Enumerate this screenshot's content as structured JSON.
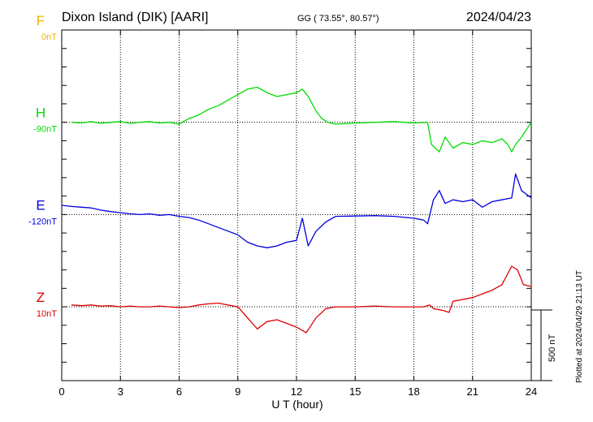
{
  "header": {
    "station": "Dixon Island (DIK)  [AARI]",
    "coords": "GG ( 73.55°,  80.57°)",
    "date": "2024/04/23"
  },
  "footer": {
    "plotted": "Plotted at 2024/04/29 21:13 UT",
    "scale_label": "500 nT"
  },
  "chart_data": {
    "type": "line",
    "title": "Dixon Island (DIK)  [AARI]",
    "xlabel": "U T (hour)",
    "ylabel": "",
    "xlim": [
      0,
      24
    ],
    "x_ticks": [
      0,
      3,
      6,
      9,
      12,
      15,
      18,
      21,
      24
    ],
    "x_tick_labels": [
      "0",
      "3",
      "6",
      "9",
      "12",
      "15",
      "18",
      "21",
      "24"
    ],
    "y_unit": "nT (offset from component baseline)",
    "ylim": [
      -450,
      500
    ],
    "grid": true,
    "scale_bar_nT": 500,
    "series": [
      {
        "name": "F",
        "baseline_label": "0nT",
        "color": "#f0b400",
        "baseline_offset": 500,
        "points": []
      },
      {
        "name": "H",
        "baseline_label": "-90nT",
        "color": "#00dd00",
        "baseline_offset": 250,
        "points": [
          [
            0.5,
            0
          ],
          [
            1,
            -2
          ],
          [
            1.5,
            2
          ],
          [
            2,
            -3
          ],
          [
            2.5,
            0
          ],
          [
            3,
            2
          ],
          [
            3.5,
            -3
          ],
          [
            4,
            0
          ],
          [
            4.5,
            2
          ],
          [
            5,
            -2
          ],
          [
            5.5,
            0
          ],
          [
            6,
            -5
          ],
          [
            6.5,
            10
          ],
          [
            7,
            20
          ],
          [
            7.5,
            35
          ],
          [
            8,
            45
          ],
          [
            8.5,
            60
          ],
          [
            9,
            75
          ],
          [
            9.5,
            90
          ],
          [
            10,
            95
          ],
          [
            10.5,
            80
          ],
          [
            11,
            70
          ],
          [
            11.5,
            75
          ],
          [
            12,
            80
          ],
          [
            12.3,
            90
          ],
          [
            12.6,
            70
          ],
          [
            13,
            30
          ],
          [
            13.3,
            10
          ],
          [
            13.6,
            0
          ],
          [
            14,
            -5
          ],
          [
            15,
            -2
          ],
          [
            16,
            0
          ],
          [
            17,
            2
          ],
          [
            18,
            -2
          ],
          [
            18.7,
            0
          ],
          [
            18.9,
            -60
          ],
          [
            19.3,
            -80
          ],
          [
            19.6,
            -40
          ],
          [
            20,
            -70
          ],
          [
            20.5,
            -55
          ],
          [
            21,
            -60
          ],
          [
            21.5,
            -50
          ],
          [
            22,
            -55
          ],
          [
            22.5,
            -45
          ],
          [
            22.8,
            -60
          ],
          [
            23,
            -80
          ],
          [
            23.2,
            -60
          ],
          [
            23.5,
            -40
          ],
          [
            24,
            0
          ]
        ]
      },
      {
        "name": "E",
        "baseline_label": "-120nT",
        "color": "#0000dd",
        "baseline_offset": 0,
        "points": [
          [
            0,
            25
          ],
          [
            0.5,
            22
          ],
          [
            1,
            20
          ],
          [
            1.5,
            18
          ],
          [
            2,
            12
          ],
          [
            2.5,
            8
          ],
          [
            3,
            5
          ],
          [
            3.5,
            2
          ],
          [
            4,
            0
          ],
          [
            4.5,
            2
          ],
          [
            5,
            -2
          ],
          [
            5.5,
            0
          ],
          [
            6,
            -5
          ],
          [
            6.5,
            -8
          ],
          [
            7,
            -15
          ],
          [
            7.5,
            -25
          ],
          [
            8,
            -35
          ],
          [
            8.5,
            -45
          ],
          [
            9,
            -55
          ],
          [
            9.5,
            -75
          ],
          [
            10,
            -85
          ],
          [
            10.5,
            -90
          ],
          [
            11,
            -85
          ],
          [
            11.5,
            -75
          ],
          [
            12,
            -70
          ],
          [
            12.3,
            -10
          ],
          [
            12.6,
            -85
          ],
          [
            13,
            -45
          ],
          [
            13.5,
            -20
          ],
          [
            14,
            -5
          ],
          [
            15,
            -4
          ],
          [
            16,
            -3
          ],
          [
            17,
            -5
          ],
          [
            18,
            -10
          ],
          [
            18.5,
            -15
          ],
          [
            18.7,
            -25
          ],
          [
            19,
            40
          ],
          [
            19.3,
            65
          ],
          [
            19.6,
            30
          ],
          [
            20,
            40
          ],
          [
            20.5,
            35
          ],
          [
            21,
            40
          ],
          [
            21.5,
            20
          ],
          [
            22,
            35
          ],
          [
            22.5,
            40
          ],
          [
            23,
            45
          ],
          [
            23.2,
            110
          ],
          [
            23.5,
            65
          ],
          [
            24,
            45
          ]
        ]
      },
      {
        "name": "Z",
        "baseline_label": "10nT",
        "color": "#dd0000",
        "baseline_offset": -250,
        "points": [
          [
            0.5,
            5
          ],
          [
            1,
            3
          ],
          [
            1.5,
            5
          ],
          [
            2,
            2
          ],
          [
            2.5,
            3
          ],
          [
            3,
            0
          ],
          [
            3.5,
            2
          ],
          [
            4,
            0
          ],
          [
            4.5,
            0
          ],
          [
            5,
            2
          ],
          [
            5.5,
            0
          ],
          [
            6,
            -2
          ],
          [
            6.5,
            0
          ],
          [
            7,
            5
          ],
          [
            7.5,
            8
          ],
          [
            8,
            10
          ],
          [
            8.5,
            5
          ],
          [
            9,
            0
          ],
          [
            9.5,
            -30
          ],
          [
            10,
            -60
          ],
          [
            10.5,
            -40
          ],
          [
            11,
            -35
          ],
          [
            11.5,
            -45
          ],
          [
            12,
            -55
          ],
          [
            12.5,
            -70
          ],
          [
            13,
            -30
          ],
          [
            13.5,
            -5
          ],
          [
            14,
            0
          ],
          [
            15,
            0
          ],
          [
            16,
            2
          ],
          [
            17,
            0
          ],
          [
            18,
            0
          ],
          [
            18.5,
            0
          ],
          [
            18.8,
            5
          ],
          [
            19,
            -5
          ],
          [
            19.5,
            -10
          ],
          [
            19.8,
            -15
          ],
          [
            20,
            15
          ],
          [
            20.5,
            20
          ],
          [
            21,
            25
          ],
          [
            21.5,
            35
          ],
          [
            22,
            45
          ],
          [
            22.5,
            60
          ],
          [
            23,
            110
          ],
          [
            23.3,
            100
          ],
          [
            23.6,
            60
          ],
          [
            24,
            55
          ]
        ]
      }
    ]
  }
}
